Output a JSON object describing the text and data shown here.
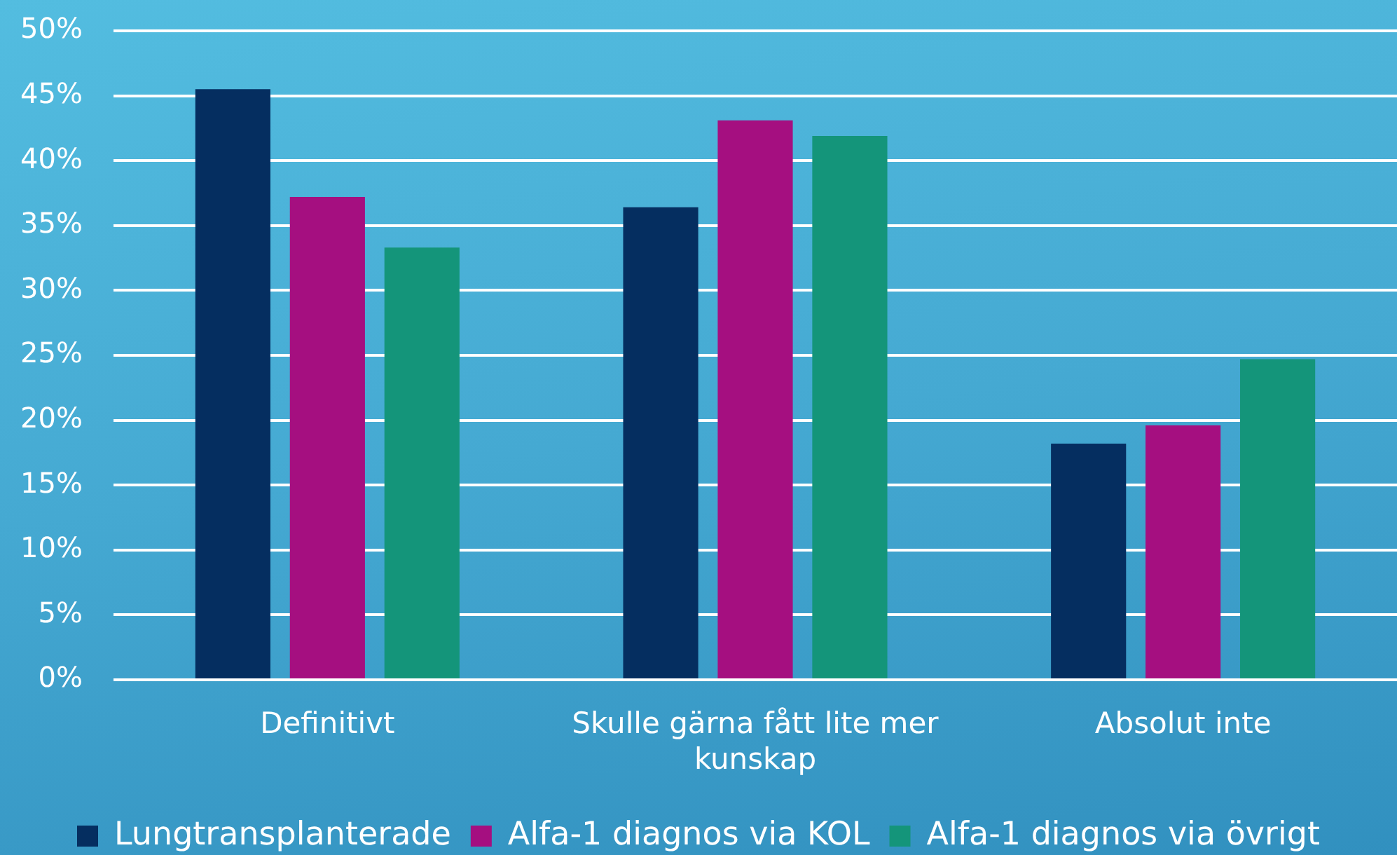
{
  "chart_data": {
    "type": "bar",
    "categories": [
      "Definitivt",
      "Skulle gärna fått lite mer kunskap",
      "Absolut inte"
    ],
    "series": [
      {
        "name": "Lungtransplanterade",
        "color": "#052e60",
        "values": [
          45.5,
          36.4,
          18.2
        ]
      },
      {
        "name": "Alfa-1 diagnos via KOL",
        "color": "#a50f80",
        "values": [
          37.2,
          43.1,
          19.6
        ]
      },
      {
        "name": "Alfa-1 diagnos via övrigt",
        "color": "#14957a",
        "values": [
          33.3,
          41.9,
          24.7
        ]
      }
    ],
    "ylim": [
      0,
      50
    ],
    "yticks": [
      {
        "value": 0,
        "label": "0%"
      },
      {
        "value": 5,
        "label": "5%"
      },
      {
        "value": 10,
        "label": "10%"
      },
      {
        "value": 15,
        "label": "15%"
      },
      {
        "value": 20,
        "label": "20%"
      },
      {
        "value": 25,
        "label": "25%"
      },
      {
        "value": 30,
        "label": "30%"
      },
      {
        "value": 35,
        "label": "35%"
      },
      {
        "value": 40,
        "label": "40%"
      },
      {
        "value": 45,
        "label": "45%"
      },
      {
        "value": 50,
        "label": "50%"
      }
    ],
    "grid": "y",
    "legend": "bottom"
  }
}
